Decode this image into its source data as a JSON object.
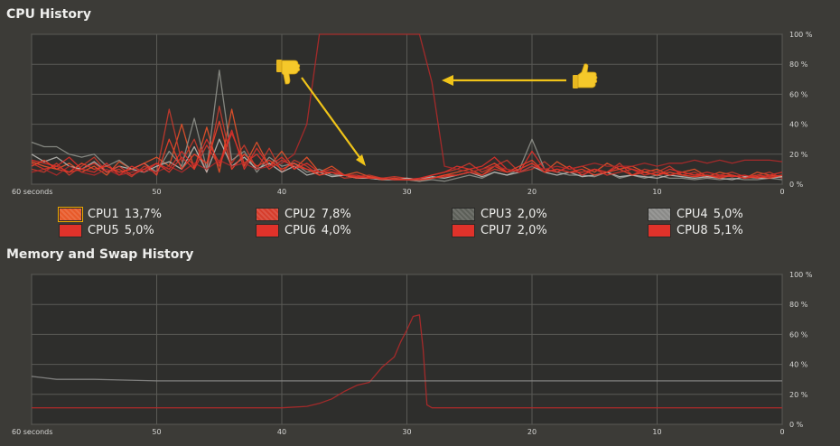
{
  "cpu_section": {
    "title": "CPU History"
  },
  "memory_section": {
    "title": "Memory and Swap History"
  },
  "legend": [
    {
      "label": "CPU1",
      "value": "13,7%",
      "color": "#e85a2a"
    },
    {
      "label": "CPU2",
      "value": "7,8%",
      "color": "#d63d2c"
    },
    {
      "label": "CPU3",
      "value": "2,0%",
      "color": "#5c5f58"
    },
    {
      "label": "CPU4",
      "value": "5,0%",
      "color": "#8a8a88"
    },
    {
      "label": "CPU5",
      "value": "5,0%",
      "color": "#e0322a"
    },
    {
      "label": "CPU6",
      "value": "4,0%",
      "color": "#e0322a"
    },
    {
      "label": "CPU7",
      "value": "2,0%",
      "color": "#e0322a"
    },
    {
      "label": "CPU8",
      "value": "5,1%",
      "color": "#e0322a"
    }
  ],
  "annotations": {
    "thumb_down_icon": "thumbs-down-icon",
    "thumb_up_icon": "thumbs-up-icon",
    "arrow_color": "#f0c419"
  },
  "chart_data": [
    {
      "type": "line",
      "title": "CPU History",
      "xlabel": "",
      "ylabel": "",
      "x_ticks": [
        "60 seconds",
        "50",
        "40",
        "30",
        "20",
        "10",
        "0"
      ],
      "y_ticks": [
        "0 %",
        "20 %",
        "40 %",
        "60 %",
        "80 %",
        "100 %"
      ],
      "xlim": [
        60,
        0
      ],
      "ylim": [
        0,
        100
      ],
      "grid": true,
      "x": [
        60,
        59,
        58,
        57,
        56,
        55,
        54,
        53,
        52,
        51,
        50,
        49,
        48,
        47,
        46,
        45,
        44,
        43,
        42,
        41,
        40,
        39,
        38,
        37,
        36,
        35,
        34,
        33,
        32,
        31,
        30,
        29,
        28,
        27,
        26,
        25,
        24,
        23,
        22,
        21,
        20,
        19,
        18,
        17,
        16,
        15,
        14,
        13,
        12,
        11,
        10,
        9,
        8,
        7,
        6,
        5,
        4,
        3,
        2,
        1,
        0
      ],
      "series": [
        {
          "name": "CPU1",
          "color": "#e8522a",
          "values": [
            15,
            12,
            10,
            14,
            8,
            12,
            6,
            15,
            10,
            14,
            18,
            12,
            40,
            10,
            38,
            8,
            50,
            12,
            28,
            12,
            22,
            10,
            18,
            8,
            12,
            6,
            8,
            5,
            4,
            3,
            3,
            2,
            4,
            6,
            8,
            10,
            6,
            12,
            8,
            10,
            14,
            8,
            15,
            10,
            12,
            8,
            14,
            10,
            12,
            8,
            10,
            6,
            8,
            10,
            5,
            8,
            6,
            4,
            8,
            6,
            5
          ]
        },
        {
          "name": "CPU2",
          "color": "#c93a2c",
          "values": [
            10,
            8,
            14,
            6,
            12,
            18,
            8,
            10,
            5,
            12,
            8,
            50,
            15,
            30,
            8,
            52,
            14,
            26,
            10,
            24,
            8,
            16,
            12,
            6,
            8,
            4,
            5,
            6,
            4,
            5,
            4,
            3,
            6,
            8,
            10,
            14,
            8,
            12,
            16,
            8,
            10,
            15,
            8,
            12,
            6,
            10,
            8,
            14,
            6,
            10,
            8,
            12,
            6,
            8,
            4,
            6,
            8,
            5,
            6,
            8,
            4
          ]
        },
        {
          "name": "CPU3",
          "color": "#8e908a",
          "values": [
            28,
            25,
            25,
            20,
            18,
            20,
            12,
            16,
            10,
            14,
            8,
            22,
            12,
            44,
            10,
            76,
            16,
            22,
            8,
            18,
            12,
            14,
            8,
            10,
            6,
            6,
            4,
            4,
            3,
            3,
            3,
            2,
            3,
            2,
            4,
            6,
            4,
            8,
            6,
            10,
            30,
            10,
            8,
            6,
            6,
            5,
            8,
            4,
            6,
            4,
            6,
            4,
            4,
            3,
            4,
            3,
            4,
            3,
            3,
            4,
            3
          ]
        },
        {
          "name": "CPU4",
          "color": "#b8b8b4",
          "values": [
            20,
            15,
            18,
            12,
            10,
            15,
            8,
            12,
            10,
            8,
            12,
            15,
            10,
            25,
            8,
            30,
            12,
            18,
            10,
            14,
            8,
            12,
            6,
            8,
            5,
            6,
            4,
            4,
            3,
            3,
            4,
            3,
            5,
            4,
            6,
            8,
            5,
            8,
            6,
            8,
            12,
            8,
            6,
            8,
            5,
            6,
            8,
            5,
            6,
            5,
            4,
            6,
            5,
            4,
            5,
            4,
            3,
            5,
            4,
            4,
            5
          ]
        },
        {
          "name": "CPU5",
          "color": "#e0302a",
          "values": [
            16,
            14,
            12,
            18,
            10,
            8,
            14,
            6,
            12,
            8,
            14,
            10,
            22,
            12,
            30,
            14,
            36,
            10,
            24,
            12,
            18,
            10,
            14,
            8,
            10,
            6,
            6,
            4,
            4,
            3,
            3,
            4,
            6,
            8,
            12,
            10,
            12,
            18,
            10,
            8,
            22,
            10,
            8,
            12,
            6,
            10,
            8,
            12,
            10,
            8,
            6,
            10,
            8,
            6,
            8,
            6,
            5,
            6,
            4,
            6,
            8
          ]
        },
        {
          "name": "CPU6",
          "color": "#f0402a",
          "values": [
            12,
            16,
            10,
            8,
            14,
            10,
            12,
            8,
            10,
            14,
            6,
            30,
            10,
            20,
            14,
            42,
            10,
            20,
            12,
            16,
            10,
            14,
            10,
            6,
            8,
            6,
            4,
            5,
            3,
            4,
            3,
            3,
            4,
            6,
            6,
            8,
            10,
            14,
            8,
            12,
            16,
            8,
            10,
            8,
            10,
            6,
            8,
            10,
            6,
            8,
            6,
            8,
            6,
            5,
            6,
            4,
            6,
            4,
            5,
            4,
            6
          ]
        },
        {
          "name": "CPU7",
          "color": "#b02a2a",
          "values": [
            8,
            10,
            6,
            12,
            8,
            6,
            10,
            6,
            8,
            10,
            8,
            12,
            8,
            14,
            10,
            16,
            12,
            14,
            10,
            12,
            14,
            20,
            40,
            100,
            100,
            100,
            100,
            100,
            100,
            100,
            100,
            100,
            68,
            12,
            10,
            8,
            10,
            12,
            10,
            8,
            12,
            10,
            12,
            10,
            12,
            14,
            12,
            12,
            12,
            14,
            12,
            14,
            14,
            16,
            14,
            16,
            14,
            16,
            16,
            16,
            15
          ]
        },
        {
          "name": "CPU8",
          "color": "#d8342a",
          "values": [
            14,
            10,
            12,
            8,
            10,
            14,
            8,
            12,
            6,
            10,
            14,
            8,
            18,
            10,
            26,
            12,
            34,
            14,
            20,
            10,
            16,
            12,
            10,
            8,
            8,
            6,
            5,
            4,
            4,
            3,
            3,
            3,
            4,
            5,
            6,
            8,
            6,
            10,
            8,
            10,
            14,
            8,
            10,
            8,
            8,
            10,
            6,
            8,
            10,
            6,
            8,
            6,
            8,
            6,
            6,
            5,
            6,
            4,
            6,
            5,
            6
          ]
        }
      ]
    },
    {
      "type": "line",
      "title": "Memory and Swap History",
      "xlabel": "",
      "ylabel": "",
      "x_ticks": [
        "60 seconds",
        "50",
        "40",
        "30",
        "20",
        "10",
        "0"
      ],
      "y_ticks": [
        "0 %",
        "20 %",
        "40 %",
        "60 %",
        "80 %",
        "100 %"
      ],
      "xlim": [
        60,
        0
      ],
      "ylim": [
        0,
        100
      ],
      "grid": true,
      "series": [
        {
          "color": "#b02a2a",
          "x": [
            60,
            40,
            38,
            37,
            36,
            35,
            34,
            33,
            32,
            31,
            30.5,
            30,
            29.5,
            29,
            28.7,
            28.4,
            28,
            20,
            10,
            0
          ],
          "values": [
            11,
            11,
            12,
            14,
            17,
            22,
            26,
            28,
            38,
            45,
            55,
            63,
            72,
            73,
            50,
            13,
            11,
            11,
            11,
            11
          ]
        },
        {
          "color": "#8a8a88",
          "x": [
            60,
            59,
            58,
            55,
            50,
            40,
            30,
            20,
            10,
            0
          ],
          "values": [
            32,
            31,
            30,
            30,
            29,
            29,
            29,
            29,
            29,
            29
          ]
        }
      ]
    }
  ]
}
